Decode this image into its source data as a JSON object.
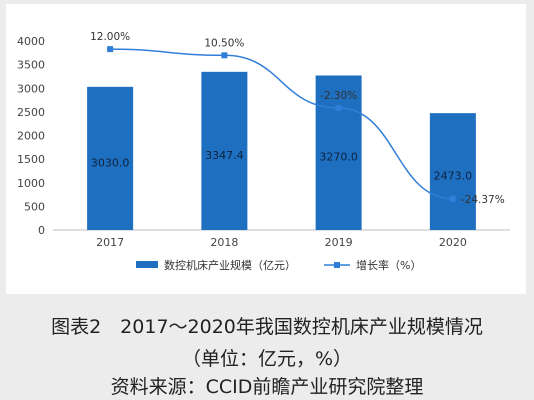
{
  "chart_data": {
    "type": "bar+line",
    "categories": [
      "2017",
      "2018",
      "2019",
      "2020"
    ],
    "bar_series": {
      "name": "数控机床产业规模（亿元）",
      "values": [
        3030.0,
        3347.4,
        3270.0,
        2473.0
      ],
      "labels": [
        "3030.0",
        "3347.4",
        "3270.0",
        "2473.0"
      ],
      "color": "#1f6fc0"
    },
    "line_series": {
      "name": "增长率（%）",
      "values": [
        12.0,
        10.5,
        -2.3,
        -24.37
      ],
      "labels": [
        "12.00%",
        "10.50%",
        "-2.30%",
        "-24.37%"
      ],
      "color": "#2f7ed8"
    },
    "y_ticks": [
      0,
      500,
      1000,
      1500,
      2000,
      2500,
      3000,
      3500,
      4000
    ],
    "ylim": [
      0,
      4000
    ],
    "legend_position": "bottom"
  },
  "caption": {
    "title": "图表2　2017～2020年我国数控机床产业规模情况",
    "subtitle": "（单位：亿元，%）",
    "source": "资料来源：CCID前瞻产业研究院整理"
  }
}
